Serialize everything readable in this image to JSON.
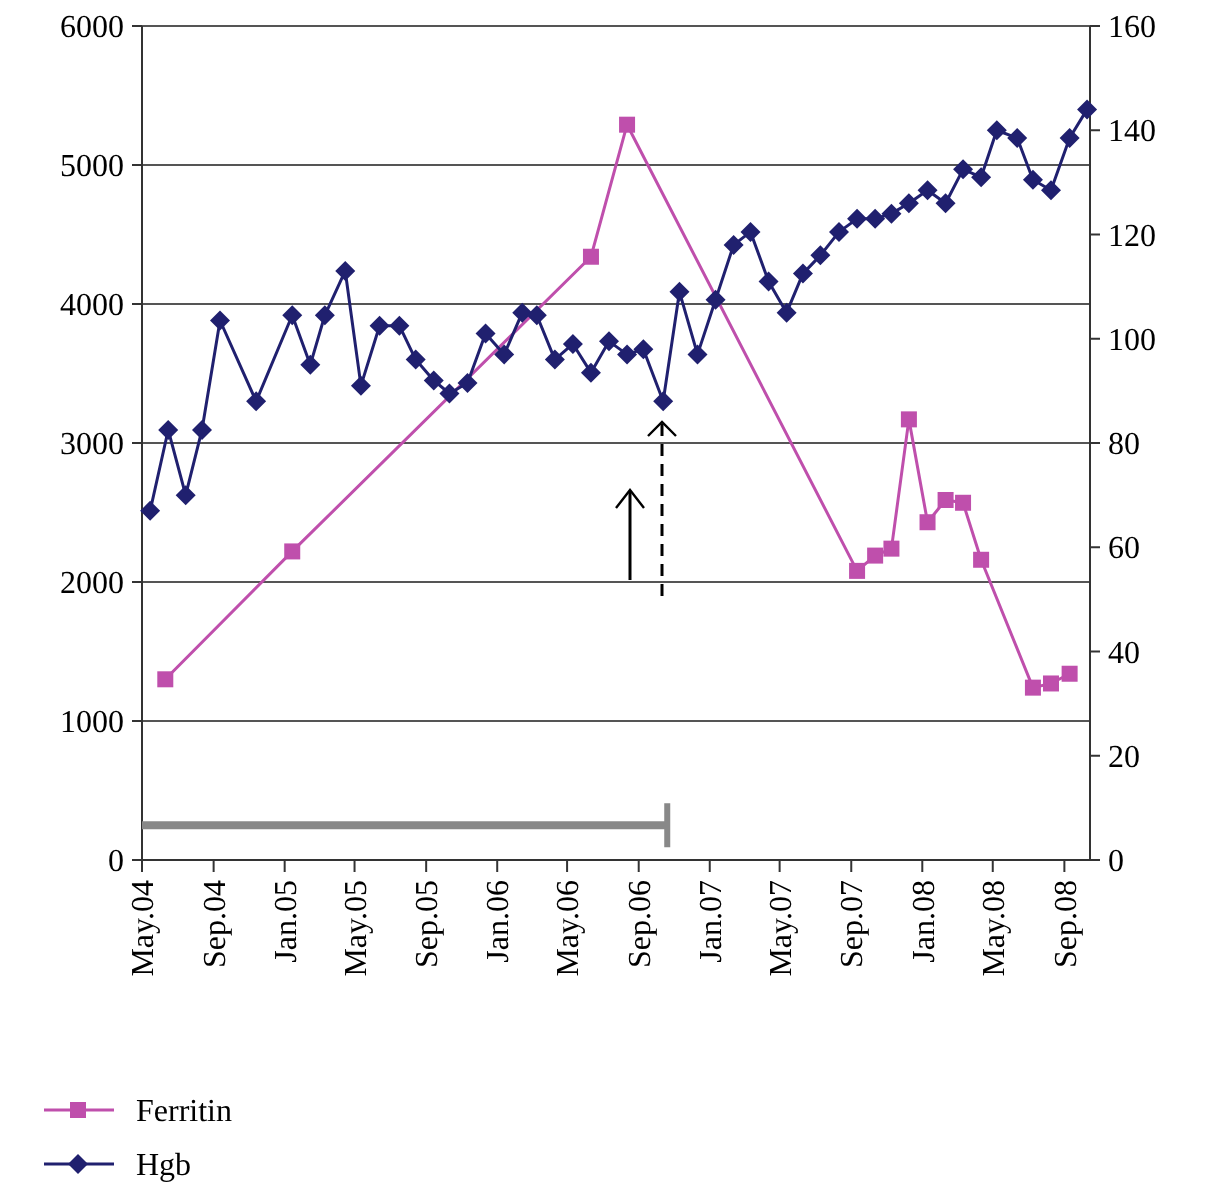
{
  "chart_data": {
    "type": "line",
    "xlim": [
      "2004-05-01",
      "2008-10-15"
    ],
    "xticks": [
      {
        "value": "2004-05-01",
        "label": "May.04"
      },
      {
        "value": "2004-09-01",
        "label": "Sep.04"
      },
      {
        "value": "2005-01-01",
        "label": "Jan.05"
      },
      {
        "value": "2005-05-01",
        "label": "May.05"
      },
      {
        "value": "2005-09-01",
        "label": "Sep.05"
      },
      {
        "value": "2006-01-01",
        "label": "Jan.06"
      },
      {
        "value": "2006-05-01",
        "label": "May.06"
      },
      {
        "value": "2006-09-01",
        "label": "Sep.06"
      },
      {
        "value": "2007-01-01",
        "label": "Jan.07"
      },
      {
        "value": "2007-05-01",
        "label": "May.07"
      },
      {
        "value": "2007-09-01",
        "label": "Sep.07"
      },
      {
        "value": "2008-01-01",
        "label": "Jan.08"
      },
      {
        "value": "2008-05-01",
        "label": "May.08"
      },
      {
        "value": "2008-09-01",
        "label": "Sep.08"
      }
    ],
    "ylim": [
      0,
      6000
    ],
    "yticks": [
      0,
      1000,
      2000,
      3000,
      4000,
      5000,
      6000
    ],
    "y2lim": [
      0,
      160
    ],
    "y2ticks": [
      0,
      20,
      40,
      60,
      80,
      100,
      120,
      140,
      160
    ],
    "grid": "y",
    "legend": "bottom",
    "series": [
      {
        "color": "#888888",
        "marker": "none",
        "x": [
          "2004-05-01",
          "2006-10-20"
        ],
        "values": [
          250,
          250
        ]
      },
      {
        "name": "Ferritin",
        "color": "#bf4fac",
        "marker": "square",
        "x": [
          "2004-06-10",
          "2005-01-14",
          "2006-06-11",
          "2006-08-12",
          "2007-09-11",
          "2007-10-12",
          "2007-11-09",
          "2007-12-09",
          "2008-01-10",
          "2008-02-10",
          "2008-03-11",
          "2008-04-11",
          "2008-07-09",
          "2008-08-09",
          "2008-09-10"
        ],
        "values": [
          1300,
          2220,
          4340,
          5290,
          2080,
          2190,
          2240,
          3170,
          2430,
          2590,
          2570,
          2160,
          1240,
          1270,
          1340
        ]
      },
      {
        "name": "Hgb",
        "color": "#20206f",
        "marker": "diamond",
        "axis": "y2",
        "x": [
          "2004-05-15",
          "2004-06-15",
          "2004-07-15",
          "2004-08-12",
          "2004-09-12",
          "2004-11-13",
          "2005-01-14",
          "2005-02-14",
          "2005-03-11",
          "2005-04-15",
          "2005-05-12",
          "2005-06-13",
          "2005-07-17",
          "2005-08-14",
          "2005-09-14",
          "2005-10-11",
          "2005-11-11",
          "2005-12-12",
          "2006-01-13",
          "2006-02-13",
          "2006-03-10",
          "2006-04-10",
          "2006-05-11",
          "2006-06-11",
          "2006-07-12",
          "2006-08-12",
          "2006-09-09",
          "2006-10-13",
          "2006-11-10",
          "2006-12-11",
          "2007-01-11",
          "2007-02-11",
          "2007-03-12",
          "2007-04-12",
          "2007-05-13",
          "2007-06-10",
          "2007-07-10",
          "2007-08-11",
          "2007-09-11",
          "2007-10-12",
          "2007-11-09",
          "2007-12-09",
          "2008-01-10",
          "2008-02-10",
          "2008-03-11",
          "2008-04-11",
          "2008-05-08",
          "2008-06-12",
          "2008-07-09",
          "2008-08-09",
          "2008-09-10",
          "2008-10-10"
        ],
        "values": [
          67,
          82.5,
          70,
          82.5,
          103.5,
          88,
          104.5,
          95,
          104.5,
          113,
          91,
          102.5,
          102.5,
          96,
          92,
          89.5,
          91.5,
          101,
          97,
          105,
          104.5,
          96,
          99,
          93.5,
          99.5,
          97,
          98,
          88,
          109,
          97,
          107.5,
          118,
          120.5,
          111,
          105,
          112.5,
          116,
          120.5,
          123,
          123,
          124,
          126,
          128.5,
          126,
          132.5,
          131,
          140,
          138.5,
          130.5,
          128.5,
          138.5,
          144
        ]
      }
    ]
  }
}
